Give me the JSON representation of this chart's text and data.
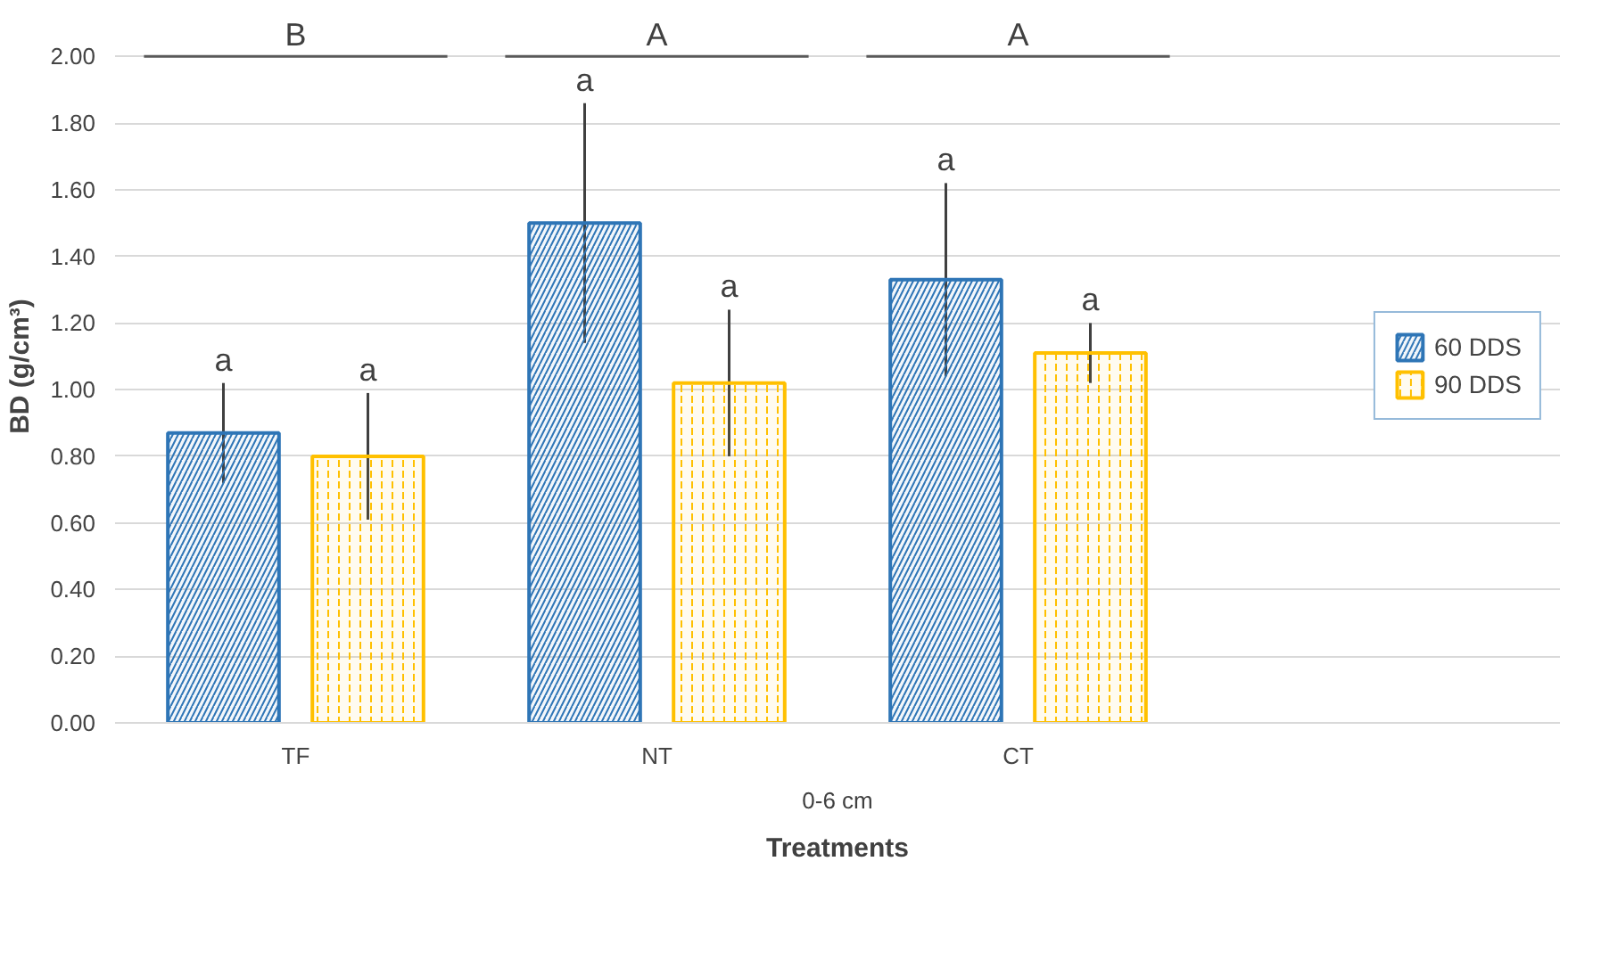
{
  "chart_data": {
    "type": "bar",
    "xlabel": "Treatments",
    "ylabel": "BD (g/cm³)",
    "categories": [
      "TF",
      "NT",
      "CT"
    ],
    "series": [
      {
        "name": "60 DDS",
        "color": "#2e75b6",
        "values": [
          0.87,
          1.5,
          1.33
        ],
        "errors": [
          0.15,
          0.36,
          0.29
        ]
      },
      {
        "name": "90 DDS",
        "color": "#ffc000",
        "values": [
          0.8,
          1.02,
          1.11
        ],
        "errors": [
          0.19,
          0.22,
          0.09
        ]
      }
    ],
    "ylim": [
      0,
      2
    ],
    "yticks": [
      {
        "value": 0,
        "label": "0.00"
      },
      {
        "value": 0.2,
        "label": "0.20"
      },
      {
        "value": 0.4,
        "label": "0.40"
      },
      {
        "value": 0.6,
        "label": "0.60"
      },
      {
        "value": 0.8,
        "label": "0.80"
      },
      {
        "value": 1.0,
        "label": "1.00"
      },
      {
        "value": 1.2,
        "label": "1.20"
      },
      {
        "value": 1.4,
        "label": "1.40"
      },
      {
        "value": 1.6,
        "label": "1.60"
      },
      {
        "value": 1.8,
        "label": "1.80"
      },
      {
        "value": 2.0,
        "label": "2.00"
      }
    ],
    "grid": "y",
    "legend": "right",
    "annotations": [
      "a",
      "a",
      "a",
      "a",
      "a",
      "a",
      "B",
      "A",
      "A",
      "0-6 cm"
    ]
  }
}
